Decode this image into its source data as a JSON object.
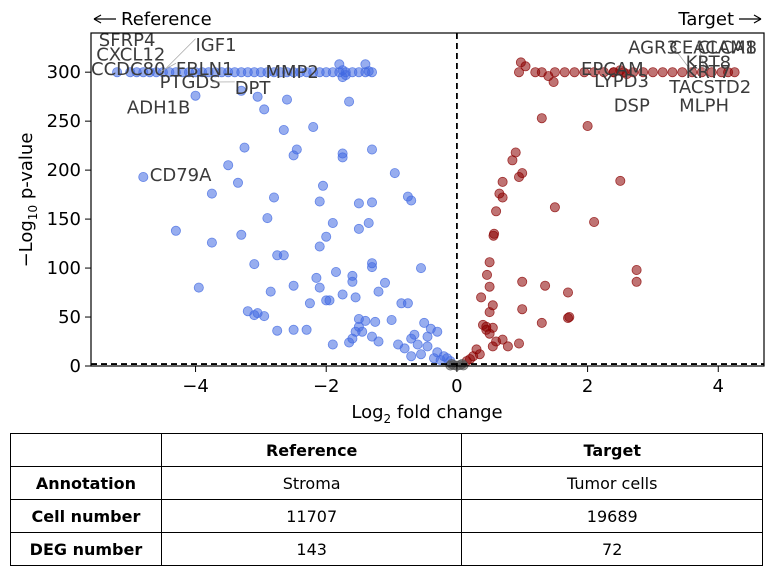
{
  "chart_data": {
    "type": "scatter",
    "title": "",
    "xlabel": "Log2 fold change",
    "xlabel_main": "Log",
    "xlabel_sub": "2",
    "xlabel_tail": " fold change",
    "ylabel": "−Log10 p-value",
    "ylabel_main": "−Log",
    "ylabel_sub": "10",
    "ylabel_tail": " p-value",
    "xlim": [
      -5.6,
      4.7
    ],
    "ylim": [
      0,
      340
    ],
    "xticks": [
      -4,
      -2,
      0,
      2,
      4
    ],
    "xtick_labels": [
      "−4",
      "−2",
      "0",
      "2",
      "4"
    ],
    "yticks": [
      0,
      50,
      100,
      150,
      200,
      250,
      300
    ],
    "ytick_labels": [
      "0",
      "50",
      "100",
      "150",
      "200",
      "250",
      "300"
    ],
    "threshold_x": 0,
    "threshold_y": 2,
    "direction_left": "Reference",
    "direction_right": "Target",
    "colors": {
      "reference": "#4169e1",
      "target": "#8b0000",
      "nonsig": "#555555",
      "label_text": "#3b3b3b"
    },
    "series": [
      {
        "name": "Reference",
        "color": "#4169e1",
        "points": [
          [
            -5.2,
            300
          ],
          [
            -5.0,
            300
          ],
          [
            -4.9,
            300
          ],
          [
            -4.8,
            300
          ],
          [
            -4.7,
            300
          ],
          [
            -4.6,
            300
          ],
          [
            -4.5,
            300
          ],
          [
            -4.4,
            300
          ],
          [
            -4.3,
            300
          ],
          [
            -4.2,
            300
          ],
          [
            -4.1,
            300
          ],
          [
            -4.0,
            300
          ],
          [
            -3.9,
            300
          ],
          [
            -3.8,
            300
          ],
          [
            -3.7,
            300
          ],
          [
            -3.6,
            300
          ],
          [
            -3.5,
            300
          ],
          [
            -3.4,
            300
          ],
          [
            -3.3,
            300
          ],
          [
            -3.2,
            300
          ],
          [
            -3.1,
            300
          ],
          [
            -3.0,
            300
          ],
          [
            -2.9,
            300
          ],
          [
            -2.8,
            300
          ],
          [
            -2.7,
            300
          ],
          [
            -2.6,
            300
          ],
          [
            -2.5,
            300
          ],
          [
            -2.4,
            300
          ],
          [
            -2.3,
            300
          ],
          [
            -2.2,
            300
          ],
          [
            -2.1,
            300
          ],
          [
            -2.0,
            300
          ],
          [
            -1.9,
            300
          ],
          [
            -1.8,
            300
          ],
          [
            -1.7,
            300
          ],
          [
            -1.6,
            300
          ],
          [
            -1.5,
            300
          ],
          [
            -1.4,
            300
          ],
          [
            -1.3,
            300
          ],
          [
            -1.8,
            308
          ],
          [
            -1.75,
            302
          ],
          [
            -1.7,
            297
          ],
          [
            -1.4,
            308
          ],
          [
            -1.35,
            301
          ],
          [
            -1.75,
            295
          ],
          [
            -3.05,
            275
          ],
          [
            -3.3,
            281
          ],
          [
            -2.95,
            262
          ],
          [
            -2.6,
            272
          ],
          [
            -1.65,
            270
          ],
          [
            -4.0,
            276
          ],
          [
            -2.65,
            241
          ],
          [
            -2.2,
            244
          ],
          [
            -2.45,
            221
          ],
          [
            -1.75,
            217
          ],
          [
            -1.75,
            213
          ],
          [
            -1.3,
            221
          ],
          [
            -0.95,
            197
          ],
          [
            -3.25,
            223
          ],
          [
            -2.5,
            215
          ],
          [
            -3.5,
            205
          ],
          [
            -3.35,
            187
          ],
          [
            -2.05,
            184
          ],
          [
            -4.8,
            193
          ],
          [
            -3.75,
            176
          ],
          [
            -2.8,
            172
          ],
          [
            -2.1,
            168
          ],
          [
            -1.5,
            166
          ],
          [
            -1.3,
            167
          ],
          [
            -0.75,
            173
          ],
          [
            -0.7,
            169
          ],
          [
            -1.9,
            146
          ],
          [
            -1.5,
            140
          ],
          [
            -1.35,
            146
          ],
          [
            -2.9,
            151
          ],
          [
            -4.3,
            138
          ],
          [
            -3.75,
            126
          ],
          [
            -3.3,
            134
          ],
          [
            -2.0,
            132
          ],
          [
            -2.1,
            122
          ],
          [
            -2.75,
            113
          ],
          [
            -3.1,
            104
          ],
          [
            -2.65,
            113
          ],
          [
            -1.3,
            105
          ],
          [
            -1.3,
            101
          ],
          [
            -0.55,
            100
          ],
          [
            -1.6,
            92
          ],
          [
            -1.85,
            96
          ],
          [
            -2.15,
            90
          ],
          [
            -2.1,
            80
          ],
          [
            -1.6,
            86
          ],
          [
            -1.1,
            85
          ],
          [
            -2.5,
            82
          ],
          [
            -2.85,
            76
          ],
          [
            -3.95,
            80
          ],
          [
            -1.2,
            76
          ],
          [
            -1.55,
            70
          ],
          [
            -1.75,
            73
          ],
          [
            -1.95,
            67
          ],
          [
            -2.0,
            67
          ],
          [
            -2.25,
            64
          ],
          [
            -0.85,
            64
          ],
          [
            -0.75,
            64
          ],
          [
            -3.2,
            56
          ],
          [
            -3.05,
            54
          ],
          [
            -3.1,
            52
          ],
          [
            -2.95,
            51
          ],
          [
            -1.5,
            48
          ],
          [
            -1.4,
            46
          ],
          [
            -1.25,
            45
          ],
          [
            -1.0,
            47
          ],
          [
            -0.5,
            44
          ],
          [
            -0.4,
            38
          ],
          [
            -0.3,
            35
          ],
          [
            -0.65,
            32
          ],
          [
            -0.7,
            28
          ],
          [
            -1.5,
            40
          ],
          [
            -1.45,
            35
          ],
          [
            -1.55,
            35
          ],
          [
            -1.6,
            28
          ],
          [
            -1.65,
            24
          ],
          [
            -1.3,
            30
          ],
          [
            -1.2,
            25
          ],
          [
            -0.9,
            22
          ],
          [
            -0.8,
            18
          ],
          [
            -0.6,
            22
          ],
          [
            -0.45,
            20
          ],
          [
            -0.3,
            14
          ],
          [
            -0.2,
            10
          ],
          [
            -0.15,
            8
          ],
          [
            -0.1,
            5
          ],
          [
            -0.25,
            6
          ],
          [
            -0.35,
            8
          ],
          [
            -0.55,
            12
          ],
          [
            -0.7,
            10
          ],
          [
            -1.9,
            22
          ],
          [
            -2.5,
            37
          ],
          [
            -2.3,
            37
          ],
          [
            -2.75,
            36
          ],
          [
            -0.45,
            30
          ]
        ]
      },
      {
        "name": "Target",
        "color": "#8b0000",
        "points": [
          [
            1.2,
            300
          ],
          [
            1.3,
            300
          ],
          [
            1.5,
            300
          ],
          [
            1.65,
            300
          ],
          [
            1.8,
            300
          ],
          [
            1.95,
            300
          ],
          [
            2.1,
            300
          ],
          [
            2.25,
            300
          ],
          [
            2.4,
            300
          ],
          [
            2.55,
            300
          ],
          [
            2.7,
            300
          ],
          [
            2.85,
            300
          ],
          [
            3.0,
            300
          ],
          [
            3.15,
            300
          ],
          [
            3.3,
            300
          ],
          [
            3.45,
            300
          ],
          [
            3.6,
            300
          ],
          [
            3.75,
            300
          ],
          [
            3.9,
            300
          ],
          [
            4.05,
            300
          ],
          [
            4.15,
            300
          ],
          [
            4.25,
            300
          ],
          [
            0.95,
            300
          ],
          [
            0.98,
            310
          ],
          [
            1.05,
            306
          ],
          [
            1.4,
            296
          ],
          [
            1.48,
            290
          ],
          [
            2.4,
            300
          ],
          [
            2.5,
            302
          ],
          [
            2.6,
            298
          ],
          [
            1.3,
            253
          ],
          [
            2.0,
            245
          ],
          [
            0.9,
            218
          ],
          [
            0.85,
            210
          ],
          [
            1.0,
            197
          ],
          [
            0.95,
            193
          ],
          [
            2.5,
            189
          ],
          [
            0.7,
            188
          ],
          [
            0.65,
            176
          ],
          [
            0.7,
            172
          ],
          [
            1.5,
            162
          ],
          [
            0.6,
            158
          ],
          [
            2.1,
            147
          ],
          [
            0.57,
            135
          ],
          [
            0.56,
            133
          ],
          [
            0.5,
            106
          ],
          [
            0.46,
            93
          ],
          [
            2.75,
            98
          ],
          [
            2.75,
            86
          ],
          [
            1.0,
            86
          ],
          [
            1.35,
            82
          ],
          [
            1.7,
            75
          ],
          [
            0.5,
            81
          ],
          [
            0.37,
            70
          ],
          [
            0.55,
            62
          ],
          [
            0.5,
            55
          ],
          [
            1.0,
            58
          ],
          [
            1.3,
            44
          ],
          [
            1.7,
            49
          ],
          [
            1.72,
            50
          ],
          [
            0.4,
            42
          ],
          [
            0.45,
            40
          ],
          [
            0.55,
            39
          ],
          [
            0.45,
            37
          ],
          [
            0.5,
            33
          ],
          [
            0.7,
            27
          ],
          [
            0.78,
            20
          ],
          [
            0.95,
            23
          ],
          [
            0.6,
            25
          ],
          [
            0.3,
            17
          ],
          [
            0.25,
            10
          ],
          [
            0.2,
            7
          ],
          [
            0.15,
            5
          ],
          [
            0.35,
            12
          ],
          [
            0.55,
            20
          ]
        ]
      },
      {
        "name": "",
        "color": "#555555",
        "points": [
          [
            -0.05,
            1
          ],
          [
            0.05,
            1
          ],
          [
            -0.1,
            0.5
          ],
          [
            0.1,
            0.6
          ],
          [
            0.0,
            0.3
          ],
          [
            -0.08,
            2
          ],
          [
            0.08,
            2
          ]
        ]
      }
    ],
    "annotations": [
      {
        "text": "SFRP4",
        "x": -5.48,
        "y": 333,
        "ax": -5.05,
        "ay": 300,
        "leader": false
      },
      {
        "text": "IGF1",
        "x": -4.0,
        "y": 328,
        "ax": -4.45,
        "ay": 304,
        "leader": true
      },
      {
        "text": "CXCL12",
        "x": -5.52,
        "y": 318,
        "ax": -5.05,
        "ay": 300,
        "leader": false
      },
      {
        "text": "CCDC80",
        "x": -5.6,
        "y": 303,
        "ax": -4.95,
        "ay": 300,
        "leader": false
      },
      {
        "text": "FBLN1",
        "x": -4.3,
        "y": 303,
        "ax": -4.55,
        "ay": 300,
        "leader": true
      },
      {
        "text": "MMP2",
        "x": -2.93,
        "y": 300,
        "ax": -2.9,
        "ay": 300,
        "leader": false
      },
      {
        "text": "PTGDS",
        "x": -4.55,
        "y": 290,
        "ax": -4.6,
        "ay": 300,
        "leader": false
      },
      {
        "text": "DPT",
        "x": -3.4,
        "y": 284,
        "ax": -3.75,
        "ay": 290,
        "leader": true
      },
      {
        "text": "ADH1B",
        "x": -5.05,
        "y": 264,
        "ax": -4.2,
        "ay": 276,
        "leader": false
      },
      {
        "text": "CD79A",
        "x": -4.7,
        "y": 195,
        "ax": -4.75,
        "ay": 193,
        "leader": false
      },
      {
        "text": "EPCAM",
        "x": 1.9,
        "y": 303,
        "ax": 2.6,
        "ay": 300,
        "leader": false
      },
      {
        "text": "LYPD3",
        "x": 2.1,
        "y": 291,
        "ax": 2.65,
        "ay": 300,
        "leader": false
      },
      {
        "text": "DSP",
        "x": 2.4,
        "y": 266,
        "ax": 2.6,
        "ay": 290,
        "leader": false
      },
      {
        "text": "AGR3",
        "x": 2.62,
        "y": 325,
        "ax": 3.2,
        "ay": 300,
        "leader": false
      },
      {
        "text": "CEACAM8",
        "x": 3.25,
        "y": 325,
        "ax": 3.6,
        "ay": 300,
        "leader": true
      },
      {
        "text": "CLCA1",
        "x": 3.68,
        "y": 325,
        "ax": 3.8,
        "ay": 300,
        "leader": true
      },
      {
        "text": "KRT8",
        "x": 3.5,
        "y": 310,
        "ax": 3.55,
        "ay": 300,
        "leader": false
      },
      {
        "text": "KRT7",
        "x": 3.5,
        "y": 300,
        "ax": 3.5,
        "ay": 300,
        "leader": false
      },
      {
        "text": "TACSTD2",
        "x": 3.25,
        "y": 285,
        "ax": 3.5,
        "ay": 300,
        "leader": false
      },
      {
        "text": "MLPH",
        "x": 3.4,
        "y": 266,
        "ax": 3.4,
        "ay": 300,
        "leader": false
      }
    ]
  },
  "table": {
    "headers": [
      "",
      "Reference",
      "Target"
    ],
    "rows": [
      {
        "label": "Annotation",
        "reference": "Stroma",
        "target": "Tumor cells"
      },
      {
        "label": "Cell number",
        "reference": "11707",
        "target": "19689"
      },
      {
        "label": "DEG number",
        "reference": "143",
        "target": "72"
      }
    ]
  }
}
